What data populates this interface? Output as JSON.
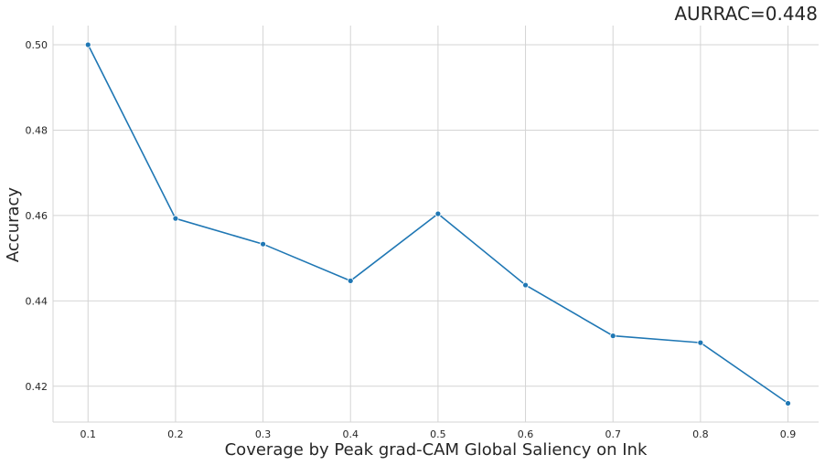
{
  "chart_data": {
    "type": "line",
    "title": "AURRAC=0.448",
    "xlabel": "Coverage by Peak grad-CAM Global Saliency on Ink",
    "ylabel": "Accuracy",
    "x": [
      0.1,
      0.2,
      0.3,
      0.4,
      0.5,
      0.6,
      0.7,
      0.8,
      0.9
    ],
    "x_tick_labels": [
      "0.1",
      "0.2",
      "0.3",
      "0.4",
      "0.5",
      "0.6",
      "0.7",
      "0.8",
      "0.9"
    ],
    "y_ticks": [
      0.42,
      0.44,
      0.46,
      0.48,
      0.5
    ],
    "y_tick_labels": [
      "0.42",
      "0.44",
      "0.46",
      "0.48",
      "0.50"
    ],
    "series": [
      {
        "values": [
          0.5,
          0.4593,
          0.4533,
          0.4447,
          0.4604,
          0.4437,
          0.4318,
          0.4302,
          0.416
        ],
        "color": "#1f77b4",
        "marker": "circle"
      }
    ],
    "xlim": [
      0.06,
      0.935
    ],
    "ylim": [
      0.4116,
      0.5045
    ],
    "grid": true
  }
}
